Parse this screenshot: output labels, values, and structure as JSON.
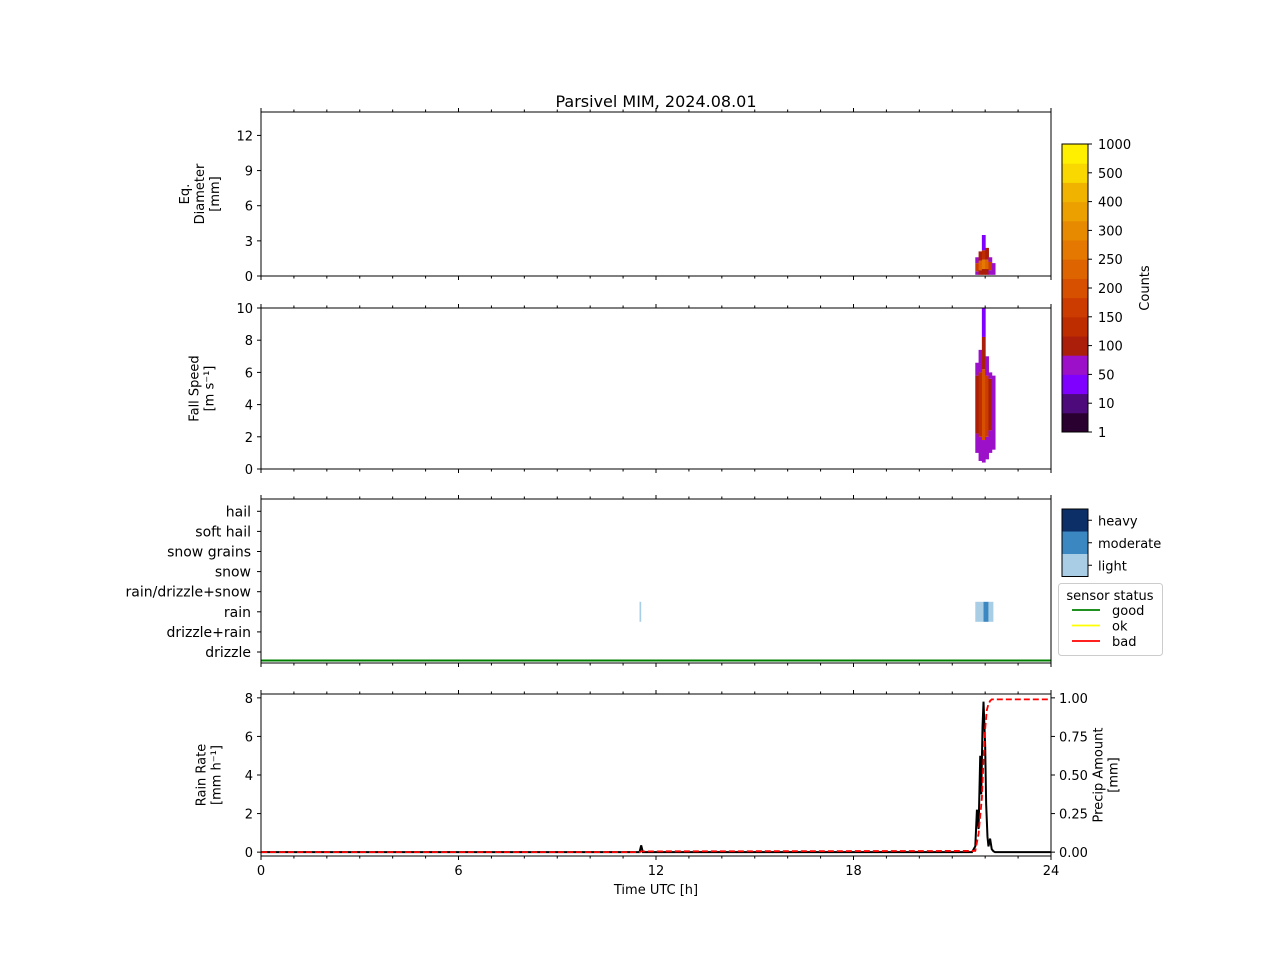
{
  "figure": {
    "title": "Parsivel MIM, 2024.08.01"
  },
  "chart_data": [
    {
      "panel": "diameter",
      "type": "heatmap",
      "title": "Parsivel MIM, 2024.08.01",
      "xlim": [
        0,
        24
      ],
      "ylim": [
        0,
        14
      ],
      "yticks": [
        "0",
        "3",
        "6",
        "9",
        "12"
      ],
      "ylabel_lines": [
        "Eq.",
        "Diameter",
        "[mm]"
      ],
      "cells": [
        {
          "t": 21.75,
          "lo": 0.1,
          "hi": 0.4,
          "level": 3
        },
        {
          "t": 21.75,
          "lo": 0.4,
          "hi": 1.1,
          "level": 6
        },
        {
          "t": 21.75,
          "lo": 1.1,
          "hi": 1.6,
          "level": 3
        },
        {
          "t": 21.85,
          "lo": 0.1,
          "hi": 0.5,
          "level": 4
        },
        {
          "t": 21.85,
          "lo": 0.5,
          "hi": 1.3,
          "level": 8
        },
        {
          "t": 21.85,
          "lo": 1.3,
          "hi": 2.1,
          "level": 4
        },
        {
          "t": 21.95,
          "lo": 0.1,
          "hi": 0.6,
          "level": 4
        },
        {
          "t": 21.95,
          "lo": 0.6,
          "hi": 1.4,
          "level": 9
        },
        {
          "t": 21.95,
          "lo": 1.4,
          "hi": 2.2,
          "level": 5
        },
        {
          "t": 21.95,
          "lo": 2.2,
          "hi": 3.5,
          "level": 2
        },
        {
          "t": 22.05,
          "lo": 0.1,
          "hi": 0.6,
          "level": 4
        },
        {
          "t": 22.05,
          "lo": 0.6,
          "hi": 1.4,
          "level": 8
        },
        {
          "t": 22.05,
          "lo": 1.4,
          "hi": 2.4,
          "level": 4
        },
        {
          "t": 22.15,
          "lo": 0.1,
          "hi": 0.5,
          "level": 3
        },
        {
          "t": 22.15,
          "lo": 0.5,
          "hi": 1.2,
          "level": 6
        },
        {
          "t": 22.15,
          "lo": 1.2,
          "hi": 1.6,
          "level": 3
        },
        {
          "t": 22.25,
          "lo": 0.1,
          "hi": 1.1,
          "level": 3
        }
      ]
    },
    {
      "panel": "fall-speed",
      "type": "heatmap",
      "xlim": [
        0,
        24
      ],
      "ylim": [
        0,
        10
      ],
      "yticks": [
        "0",
        "2",
        "4",
        "6",
        "8",
        "10"
      ],
      "ylabel_lines": [
        "Fall Speed",
        "[m s⁻¹]"
      ],
      "cells": [
        {
          "t": 21.75,
          "lo": 1.0,
          "hi": 2.2,
          "level": 3
        },
        {
          "t": 21.75,
          "lo": 2.2,
          "hi": 5.8,
          "level": 4
        },
        {
          "t": 21.75,
          "lo": 5.8,
          "hi": 6.6,
          "level": 3
        },
        {
          "t": 21.85,
          "lo": 0.5,
          "hi": 2.0,
          "level": 3
        },
        {
          "t": 21.85,
          "lo": 2.0,
          "hi": 6.0,
          "level": 5
        },
        {
          "t": 21.85,
          "lo": 6.0,
          "hi": 7.4,
          "level": 3
        },
        {
          "t": 21.95,
          "lo": 0.4,
          "hi": 1.8,
          "level": 3
        },
        {
          "t": 21.95,
          "lo": 1.8,
          "hi": 6.2,
          "level": 7
        },
        {
          "t": 21.95,
          "lo": 6.2,
          "hi": 8.2,
          "level": 4
        },
        {
          "t": 21.95,
          "lo": 8.2,
          "hi": 10.0,
          "level": 2
        },
        {
          "t": 22.05,
          "lo": 0.6,
          "hi": 2.0,
          "level": 3
        },
        {
          "t": 22.05,
          "lo": 2.0,
          "hi": 5.8,
          "level": 6
        },
        {
          "t": 22.05,
          "lo": 5.8,
          "hi": 7.0,
          "level": 3
        },
        {
          "t": 22.15,
          "lo": 1.0,
          "hi": 2.4,
          "level": 3
        },
        {
          "t": 22.15,
          "lo": 2.4,
          "hi": 5.6,
          "level": 4
        },
        {
          "t": 22.15,
          "lo": 5.6,
          "hi": 6.0,
          "level": 3
        },
        {
          "t": 22.25,
          "lo": 1.2,
          "hi": 5.8,
          "level": 3
        }
      ]
    },
    {
      "panel": "precip-type",
      "type": "heatmap",
      "xlim": [
        0,
        24
      ],
      "categories": [
        "drizzle",
        "drizzle+rain",
        "rain",
        "rain/drizzle+snow",
        "snow",
        "snow grains",
        "soft hail",
        "hail"
      ],
      "intensity_legend": [
        "light",
        "moderate",
        "heavy"
      ],
      "intensity_colors": [
        "#a8cde4",
        "#3a87c2",
        "#0b2f66"
      ],
      "cells": [
        {
          "t0": 11.5,
          "t1": 11.55,
          "category": "rain",
          "intensity": "light"
        },
        {
          "t0": 21.7,
          "t1": 21.95,
          "category": "rain",
          "intensity": "light"
        },
        {
          "t0": 21.95,
          "t1": 22.1,
          "category": "rain",
          "intensity": "moderate"
        },
        {
          "t0": 22.1,
          "t1": 22.25,
          "category": "rain",
          "intensity": "light"
        }
      ],
      "sensor_status": {
        "title": "sensor status",
        "entries": [
          {
            "label": "good",
            "color": "#008000"
          },
          {
            "label": "ok",
            "color": "#ffff00"
          },
          {
            "label": "bad",
            "color": "#ff0000"
          }
        ],
        "series": [
          {
            "x": [
              0,
              24
            ],
            "status": "good"
          }
        ]
      }
    },
    {
      "panel": "rain-rate",
      "type": "line",
      "xlim": [
        0,
        24
      ],
      "xticks": [
        "0",
        "6",
        "12",
        "18",
        "24"
      ],
      "xlabel": "Time UTC [h]",
      "ylim": [
        -0.2,
        8.2
      ],
      "yticks": [
        "0",
        "2",
        "4",
        "6",
        "8"
      ],
      "ylabel_lines": [
        "Rain Rate",
        "[mm h⁻¹]"
      ],
      "y2lim": [
        -0.025,
        1.025
      ],
      "y2ticks": [
        "0.00",
        "0.25",
        "0.50",
        "0.75",
        "1.00"
      ],
      "y2label_lines": [
        "Precip Amount",
        "[mm]"
      ],
      "series": [
        {
          "axis": "left",
          "color": "#000000",
          "style": "solid",
          "x": [
            0,
            11.5,
            11.55,
            11.6,
            11.65,
            21.6,
            21.7,
            21.75,
            21.8,
            21.85,
            21.88,
            21.92,
            21.95,
            22.0,
            22.03,
            22.07,
            22.1,
            22.15,
            22.2,
            22.25,
            22.3,
            24
          ],
          "y": [
            0,
            0,
            0.35,
            0,
            0,
            0,
            0.3,
            2.2,
            1.2,
            5.0,
            3.0,
            6.5,
            7.8,
            5.5,
            2.5,
            0.8,
            0.3,
            0.7,
            0.15,
            0.05,
            0,
            0
          ]
        },
        {
          "axis": "right",
          "color": "#ff0000",
          "style": "dashed",
          "x": [
            0,
            11.5,
            11.55,
            21.7,
            21.8,
            21.9,
            21.95,
            22.0,
            22.05,
            22.1,
            22.15,
            22.2,
            24
          ],
          "y": [
            0,
            0,
            0.005,
            0.008,
            0.12,
            0.35,
            0.6,
            0.8,
            0.92,
            0.96,
            0.98,
            0.99,
            0.99
          ]
        }
      ]
    },
    {
      "panel": "counts-colorbar",
      "type": "heatmap",
      "label": "Counts",
      "ticks": [
        "1",
        "10",
        "50",
        "100",
        "150",
        "200",
        "250",
        "300",
        "400",
        "500",
        "1000"
      ],
      "colors": [
        "#2a0030",
        "#4d0a7a",
        "#7f00ff",
        "#9b10c8",
        "#aa1e0a",
        "#be2d00",
        "#cc3c00",
        "#d65000",
        "#de6400",
        "#e47800",
        "#e88a00",
        "#eca000",
        "#f0b400",
        "#f8d800",
        "#fff000"
      ]
    }
  ]
}
